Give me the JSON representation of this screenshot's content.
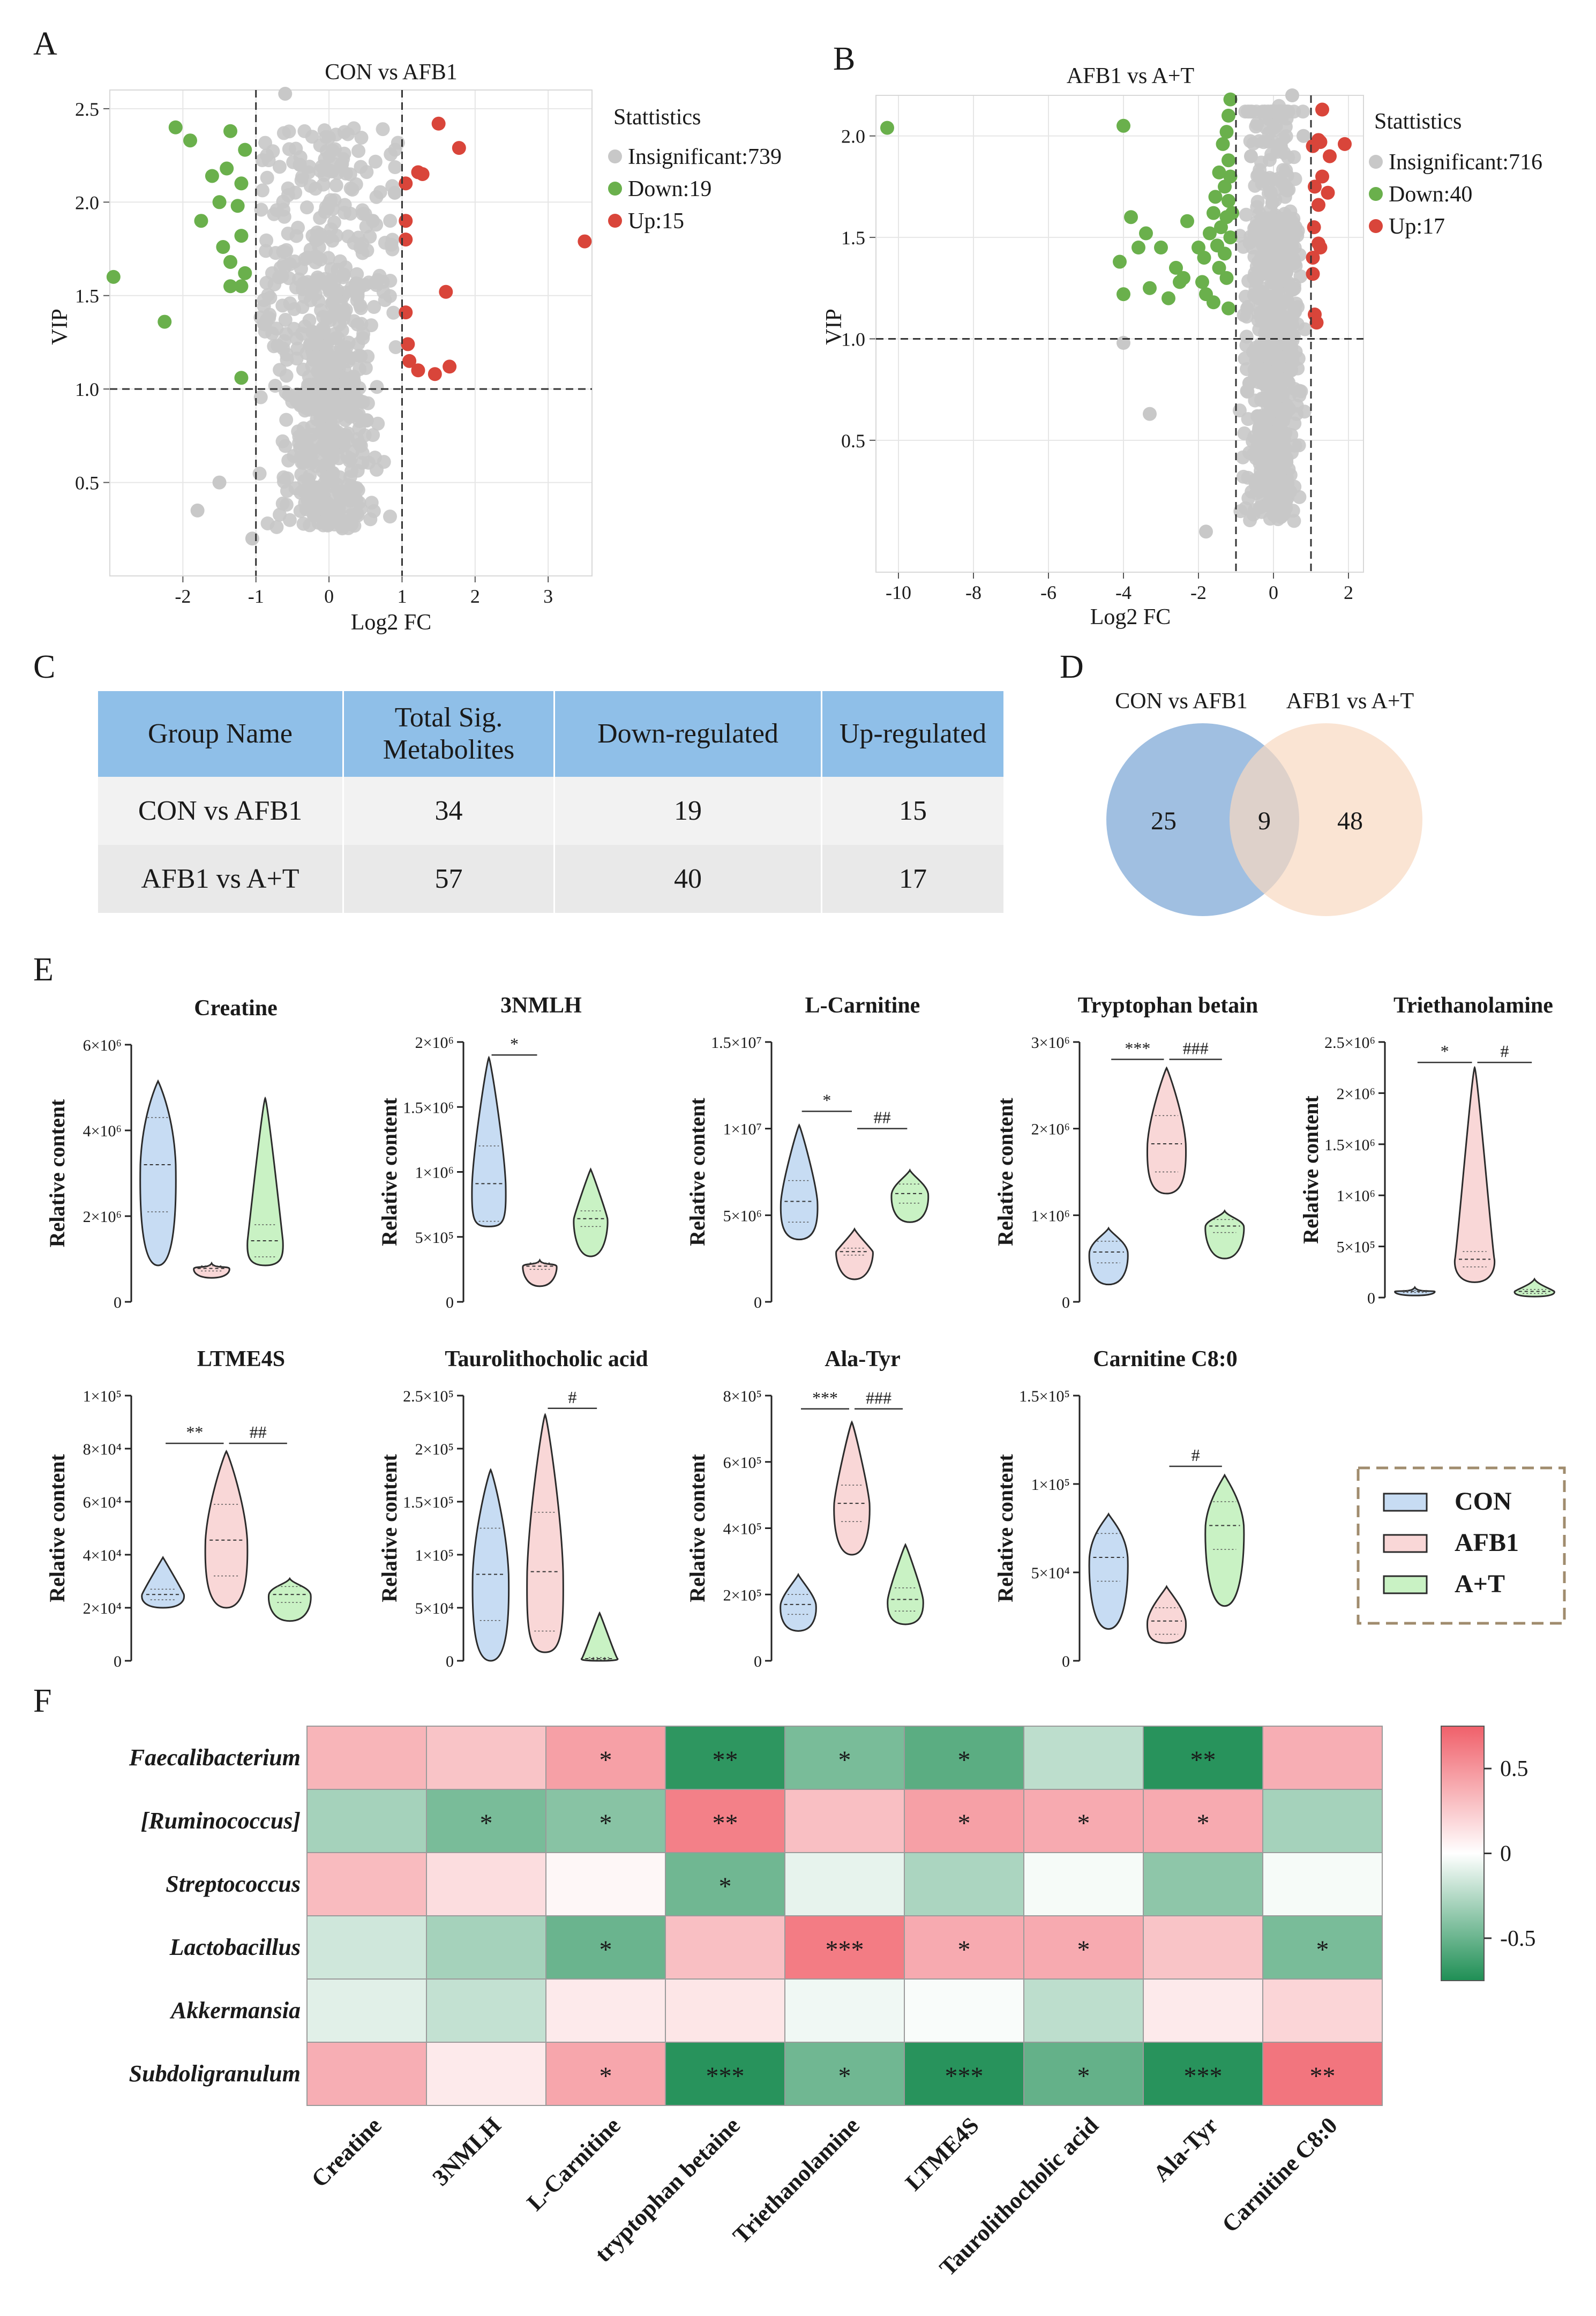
{
  "panel_letters": [
    "A",
    "B",
    "C",
    "D",
    "E",
    "F"
  ],
  "chart_data": [
    {
      "panel": "A",
      "type": "scatter",
      "title": "CON vs AFB1",
      "xlabel": "Log2 FC",
      "ylabel": "VIP",
      "xlim": [
        -3.0,
        3.6
      ],
      "ylim": [
        0.0,
        2.6
      ],
      "xticks": [
        "-2",
        "-1",
        "0",
        "1",
        "2",
        "3"
      ],
      "xtick_values": [
        -2,
        -1,
        0,
        1,
        2,
        3
      ],
      "yticks": [
        "0.5",
        "1.0",
        "1.5",
        "2.0",
        "2.5"
      ],
      "ytick_values": [
        0.5,
        1.0,
        1.5,
        2.0,
        2.5
      ],
      "thresholds": {
        "x": [
          -1,
          1
        ],
        "y": 1.0
      },
      "legend_title": "Stattistics",
      "legend": [
        {
          "label": "Insignificant:739",
          "color": "#c8c8c8"
        },
        {
          "label": "Down:19",
          "color": "#6ab04c"
        },
        {
          "label": "Up:15",
          "color": "#d9453a"
        }
      ],
      "down_points": [
        [
          -2.1,
          2.4
        ],
        [
          -1.9,
          2.33
        ],
        [
          -1.35,
          2.38
        ],
        [
          -1.15,
          2.28
        ],
        [
          -1.4,
          2.18
        ],
        [
          -1.6,
          2.14
        ],
        [
          -1.2,
          2.1
        ],
        [
          -1.5,
          2.0
        ],
        [
          -1.25,
          1.98
        ],
        [
          -1.75,
          1.9
        ],
        [
          -1.2,
          1.82
        ],
        [
          -1.45,
          1.76
        ],
        [
          -1.35,
          1.68
        ],
        [
          -1.15,
          1.62
        ],
        [
          -1.35,
          1.55
        ],
        [
          -1.2,
          1.55
        ],
        [
          -2.95,
          1.6
        ],
        [
          -2.25,
          1.36
        ],
        [
          -1.2,
          1.06
        ]
      ],
      "up_points": [
        [
          1.5,
          2.42
        ],
        [
          1.78,
          2.29
        ],
        [
          1.22,
          2.16
        ],
        [
          1.28,
          2.15
        ],
        [
          1.05,
          2.1
        ],
        [
          1.05,
          1.9
        ],
        [
          1.05,
          1.8
        ],
        [
          3.5,
          1.79
        ],
        [
          1.6,
          1.52
        ],
        [
          1.05,
          1.41
        ],
        [
          1.08,
          1.24
        ],
        [
          1.22,
          1.1
        ],
        [
          1.45,
          1.08
        ],
        [
          1.65,
          1.12
        ],
        [
          1.1,
          1.15
        ]
      ],
      "insignificant_count": 739
    },
    {
      "panel": "B",
      "type": "scatter",
      "title": "AFB1 vs A+T",
      "xlabel": "Log2 FC",
      "ylabel": "VIP",
      "xlim": [
        -10.6,
        2.4
      ],
      "ylim": [
        -0.15,
        2.2
      ],
      "xticks": [
        "-10",
        "-8",
        "-6",
        "-4",
        "-2",
        "0",
        "2"
      ],
      "xtick_values": [
        -10,
        -8,
        -6,
        -4,
        -2,
        0,
        2
      ],
      "yticks": [
        "0.5",
        "1.0",
        "1.5",
        "2.0"
      ],
      "ytick_values": [
        0.5,
        1.0,
        1.5,
        2.0
      ],
      "thresholds": {
        "x": [
          -1,
          1
        ],
        "y": 1.0
      },
      "legend_title": "Stattistics",
      "legend": [
        {
          "label": "Insignificant:716",
          "color": "#c8c8c8"
        },
        {
          "label": "Down:40",
          "color": "#6ab04c"
        },
        {
          "label": "Up:17",
          "color": "#d9453a"
        }
      ],
      "down_points": [
        [
          -10.3,
          2.04
        ],
        [
          -4.0,
          2.05
        ],
        [
          -1.15,
          2.18
        ],
        [
          -1.2,
          2.1
        ],
        [
          -1.25,
          2.02
        ],
        [
          -1.35,
          1.96
        ],
        [
          -1.2,
          1.88
        ],
        [
          -1.45,
          1.82
        ],
        [
          -1.15,
          1.8
        ],
        [
          -1.3,
          1.75
        ],
        [
          -1.55,
          1.7
        ],
        [
          -1.2,
          1.68
        ],
        [
          -1.6,
          1.62
        ],
        [
          -1.25,
          1.6
        ],
        [
          -1.4,
          1.55
        ],
        [
          -1.7,
          1.52
        ],
        [
          -1.15,
          1.5
        ],
        [
          -1.5,
          1.46
        ],
        [
          -1.3,
          1.42
        ],
        [
          -1.85,
          1.4
        ],
        [
          -2.3,
          1.58
        ],
        [
          -2.0,
          1.45
        ],
        [
          -2.4,
          1.3
        ],
        [
          -2.6,
          1.35
        ],
        [
          -2.5,
          1.28
        ],
        [
          -3.0,
          1.45
        ],
        [
          -3.4,
          1.52
        ],
        [
          -3.6,
          1.45
        ],
        [
          -3.8,
          1.6
        ],
        [
          -4.1,
          1.38
        ],
        [
          -4.0,
          1.22
        ],
        [
          -3.3,
          1.25
        ],
        [
          -2.8,
          1.2
        ],
        [
          -1.8,
          1.22
        ],
        [
          -1.2,
          1.15
        ],
        [
          -1.45,
          1.35
        ],
        [
          -1.1,
          1.62
        ],
        [
          -1.9,
          1.28
        ],
        [
          -1.6,
          1.18
        ],
        [
          -1.25,
          1.3
        ]
      ],
      "up_points": [
        [
          1.3,
          2.13
        ],
        [
          1.2,
          1.98
        ],
        [
          1.05,
          1.95
        ],
        [
          1.25,
          1.97
        ],
        [
          1.9,
          1.96
        ],
        [
          1.5,
          1.9
        ],
        [
          1.3,
          1.8
        ],
        [
          1.1,
          1.75
        ],
        [
          1.45,
          1.72
        ],
        [
          1.2,
          1.66
        ],
        [
          1.08,
          1.55
        ],
        [
          1.2,
          1.47
        ],
        [
          1.25,
          1.45
        ],
        [
          1.05,
          1.4
        ],
        [
          1.1,
          1.12
        ],
        [
          1.15,
          1.08
        ],
        [
          1.05,
          1.32
        ]
      ],
      "insignificant_count": 716
    },
    {
      "panel": "E",
      "type": "violin",
      "ylabel": "Relative content",
      "groups": [
        "CON",
        "AFB1",
        "A+T"
      ],
      "group_colors": {
        "CON": "#c7dcf3",
        "AFB1": "#f9d7d7",
        "A+T": "#c9f2c4"
      },
      "subplots": [
        {
          "title": "Creatine",
          "ymax": 6000000.0,
          "yticks": [
            0,
            2000000,
            4000000,
            6000000
          ],
          "ytick_labels": [
            "0",
            "2×10⁶",
            "4×10⁶",
            "6×10⁶"
          ],
          "violins": [
            [
              850000,
              2100000,
              4300000,
              5150000
            ],
            [
              560000,
              720000,
              840000,
              900000
            ],
            [
              850000,
              1050000,
              1800000,
              4750000
            ]
          ],
          "sig": []
        },
        {
          "title": "3NMLH",
          "ymax": 2000000.0,
          "yticks": [
            0,
            500000,
            1000000,
            1500000,
            2000000
          ],
          "ytick_labels": [
            "0",
            "5×10⁵",
            "1×10⁶",
            "1.5×10⁶",
            "2×10⁶"
          ],
          "violins": [
            [
              580000,
              620000,
              1200000,
              1880000
            ],
            [
              120000,
              250000,
              300000,
              320000
            ],
            [
              350000,
              580000,
              700000,
              1020000
            ]
          ],
          "sig": [
            {
              "from": 0,
              "to": 1,
              "label": "*",
              "level": 1900000.0
            }
          ]
        },
        {
          "title": "L-Carnitine",
          "ymax": 15000000.0,
          "yticks": [
            0,
            5000000,
            10000000,
            15000000
          ],
          "ytick_labels": [
            "0",
            "5×10⁶",
            "1×10⁷",
            "1.5×10⁷"
          ],
          "violins": [
            [
              3600000,
              4600000,
              7000000,
              10200000
            ],
            [
              1300000,
              2700000,
              3100000,
              4200000
            ],
            [
              4600000,
              5700000,
              6800000,
              7600000
            ]
          ],
          "sig": [
            {
              "from": 0,
              "to": 1,
              "label": "*",
              "level": 11000000.0
            },
            {
              "from": 1,
              "to": 2,
              "label": "##",
              "level": 10000000.0
            }
          ]
        },
        {
          "title": "Tryptophan betain",
          "ymax": 3000000.0,
          "yticks": [
            0,
            1000000,
            2000000,
            3000000
          ],
          "ytick_labels": [
            "0",
            "1×10⁶",
            "2×10⁶",
            "3×10⁶"
          ],
          "violins": [
            [
              200000,
              450000,
              700000,
              850000
            ],
            [
              1250000,
              1500000,
              2150000,
              2700000
            ],
            [
              500000,
              800000,
              950000,
              1050000
            ]
          ],
          "sig": [
            {
              "from": 0,
              "to": 1,
              "label": "***",
              "level": 2800000.0
            },
            {
              "from": 1,
              "to": 2,
              "label": "###",
              "level": 2800000.0
            }
          ]
        },
        {
          "title": "Triethanolamine",
          "ymax": 2500000.0,
          "yticks": [
            0,
            500000,
            1000000,
            1500000,
            2000000,
            2500000
          ],
          "ytick_labels": [
            "0",
            "5×10⁵",
            "1×10⁶",
            "1.5×10⁶",
            "2×10⁶",
            "2.5×10⁶"
          ],
          "violins": [
            [
              20000,
              50000,
              70000,
              100000
            ],
            [
              150000,
              300000,
              450000,
              2250000
            ],
            [
              10000,
              40000,
              80000,
              180000
            ]
          ],
          "sig": [
            {
              "from": 0,
              "to": 1,
              "label": "*",
              "level": 2300000.0
            },
            {
              "from": 1,
              "to": 2,
              "label": "#",
              "level": 2300000.0
            }
          ]
        },
        {
          "title": "LTME4S",
          "ymax": 100000.0,
          "yticks": [
            0,
            20000,
            40000,
            60000,
            80000,
            100000
          ],
          "ytick_labels": [
            "0",
            "2×10⁴",
            "4×10⁴",
            "6×10⁴",
            "8×10⁴",
            "1×10⁵"
          ],
          "violins": [
            [
              20000,
              23000,
              27000,
              39000
            ],
            [
              20000,
              32000,
              59000,
              79000
            ],
            [
              15000,
              22000,
              28000,
              31000
            ]
          ],
          "sig": [
            {
              "from": 0,
              "to": 1,
              "label": "**",
              "level": 82000
            },
            {
              "from": 1,
              "to": 2,
              "label": "##",
              "level": 82000
            }
          ]
        },
        {
          "title": "Taurolithocholic acid",
          "ymax": 250000.0,
          "yticks": [
            0,
            50000,
            100000,
            150000,
            200000,
            250000
          ],
          "ytick_labels": [
            "0",
            "5×10⁴",
            "1×10⁵",
            "1.5×10⁵",
            "2×10⁵",
            "2.5×10⁵"
          ],
          "violins": [
            [
              0,
              38000,
              125000,
              180000
            ],
            [
              8000,
              28000,
              140000,
              232000
            ],
            [
              0,
              1000,
              3000,
              45000
            ]
          ],
          "sig": [
            {
              "from": 1,
              "to": 2,
              "label": "#",
              "level": 238000
            }
          ]
        },
        {
          "title": "Ala-Tyr",
          "ymax": 800000.0,
          "yticks": [
            0,
            200000,
            400000,
            600000,
            800000
          ],
          "ytick_labels": [
            "0",
            "2×10⁵",
            "4×10⁵",
            "6×10⁵",
            "8×10⁵"
          ],
          "violins": [
            [
              90000,
              140000,
              200000,
              260000
            ],
            [
              320000,
              420000,
              530000,
              720000
            ],
            [
              110000,
              150000,
              220000,
              350000
            ]
          ],
          "sig": [
            {
              "from": 0,
              "to": 1,
              "label": "***",
              "level": 760000
            },
            {
              "from": 1,
              "to": 2,
              "label": "###",
              "level": 760000
            }
          ]
        },
        {
          "title": "Carnitine C8:0",
          "ymax": 150000.0,
          "yticks": [
            0,
            50000,
            100000,
            150000
          ],
          "ytick_labels": [
            "0",
            "5×10⁴",
            "1×10⁵",
            "1.5×10⁵"
          ],
          "violins": [
            [
              18000,
              45000,
              72000,
              83000
            ],
            [
              10000,
              15000,
              30000,
              42000
            ],
            [
              31000,
              63000,
              90000,
              105000
            ]
          ],
          "sig": [
            {
              "from": 1,
              "to": 2,
              "label": "#",
              "level": 110000
            }
          ]
        }
      ],
      "legend": [
        {
          "label": "CON",
          "color": "#c7dcf3"
        },
        {
          "label": "AFB1",
          "color": "#f9d7d7"
        },
        {
          "label": "A+T",
          "color": "#c9f2c4"
        }
      ]
    },
    {
      "panel": "F",
      "type": "heatmap",
      "rows": [
        "Faecalibacterium",
        "[Ruminococcus]",
        "Streptococcus",
        "Lactobacillus",
        "Akkermansia",
        "Subdoligranulum"
      ],
      "cols": [
        "Creatine",
        "3NMLH",
        "L-Carnitine",
        "tryptophan betaine",
        "Triethanolamine",
        "LTME4S",
        "Taurolithocholic acid",
        "Ala-Tyr",
        "Carnitine C8:0"
      ],
      "values": [
        [
          0.35,
          0.28,
          0.45,
          -0.7,
          -0.45,
          -0.55,
          -0.22,
          -0.72,
          0.38
        ],
        [
          -0.3,
          -0.45,
          -0.4,
          0.6,
          0.3,
          0.45,
          0.4,
          0.4,
          -0.3
        ],
        [
          0.32,
          0.16,
          0.04,
          -0.48,
          -0.08,
          -0.28,
          -0.03,
          -0.38,
          -0.03
        ],
        [
          -0.16,
          -0.3,
          -0.5,
          0.3,
          0.62,
          0.4,
          0.4,
          0.28,
          -0.45
        ],
        [
          -0.1,
          -0.2,
          0.1,
          0.12,
          -0.05,
          -0.02,
          -0.22,
          0.1,
          0.2
        ],
        [
          0.38,
          0.1,
          0.42,
          -0.72,
          -0.48,
          -0.72,
          -0.52,
          -0.72,
          0.65
        ]
      ],
      "sig": [
        [
          "",
          "",
          "*",
          "**",
          "*",
          "*",
          "",
          "**",
          ""
        ],
        [
          "",
          "*",
          "*",
          "**",
          "",
          "*",
          "*",
          "*",
          ""
        ],
        [
          "",
          "",
          "",
          "*",
          "",
          "",
          "",
          "",
          ""
        ],
        [
          "",
          "",
          "*",
          "",
          "***",
          "*",
          "*",
          "",
          "*"
        ],
        [
          "",
          "",
          "",
          "",
          "",
          "",
          "",
          "",
          ""
        ],
        [
          "",
          "",
          "*",
          "***",
          "*",
          "***",
          "*",
          "***",
          "**"
        ]
      ],
      "colorbar": {
        "min": -0.75,
        "max": 0.75,
        "ticks": [
          0.5,
          0,
          -0.5
        ],
        "tick_labels": [
          "0.5",
          "0",
          "-0.5"
        ],
        "low": "#1f8f55",
        "mid": "#ffffff",
        "high": "#f0606a"
      }
    }
  ],
  "table": {
    "headers": [
      "Group Name",
      "Total Sig. Metabolites",
      "Down-regulated",
      "Up-regulated"
    ],
    "rows": [
      [
        "CON vs AFB1",
        "34",
        "19",
        "15"
      ],
      [
        "AFB1 vs A+T",
        "57",
        "40",
        "17"
      ]
    ]
  },
  "venn": {
    "left_label": "CON vs AFB1",
    "right_label": "AFB1 vs A+T",
    "left_only": "25",
    "overlap": "9",
    "right_only": "48",
    "left_color": "#8fb4dc",
    "right_color": "#f8d9c1"
  }
}
